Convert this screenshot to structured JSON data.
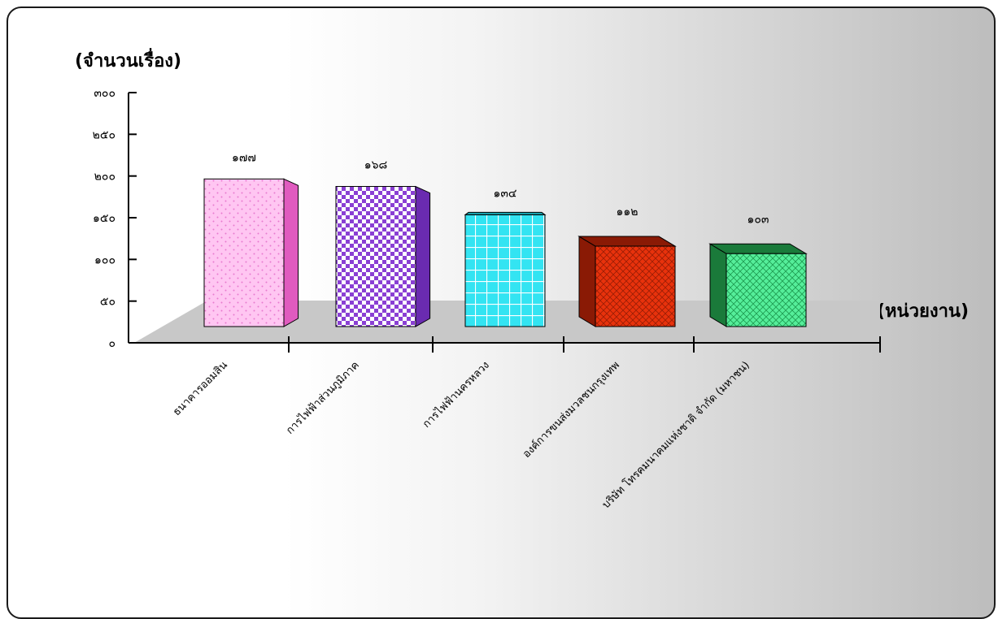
{
  "chart_data": {
    "type": "bar",
    "ylabel": "(จำนวนเรื่อง)",
    "xlabel": "(หน่วยงาน)",
    "ylim": [
      0,
      300
    ],
    "yticks": [
      "๐",
      "๕๐",
      "๑๐๐",
      "๑๕๐",
      "๒๐๐",
      "๒๕๐",
      "๓๐๐"
    ],
    "categories": [
      "ธนาคารออมสิน",
      "การไฟฟ้าส่วนภูมิภาค",
      "การไฟฟ้านครหลวง",
      "องค์การขนส่งมวลชนกรุงเทพ",
      "บริษัท โทรคมนาคมแห่งชาติ จำกัด (มหาชน)"
    ],
    "values": [
      177,
      168,
      134,
      112,
      103
    ],
    "value_labels": [
      "๑๗๗",
      "๑๖๘",
      "๑๓๔",
      "๑๑๒",
      "๑๐๓"
    ],
    "bar_colors": [
      "#ffb3f0",
      "#9d4fe0",
      "#2ee3f0",
      "#e0300a",
      "#3ee58a"
    ],
    "bar_side_colors": [
      "#e05bbf",
      "#6a2bb0",
      "#1aa8b3",
      "#8a1a05",
      "#1a7a3a"
    ],
    "grid": false,
    "legend": "none"
  }
}
